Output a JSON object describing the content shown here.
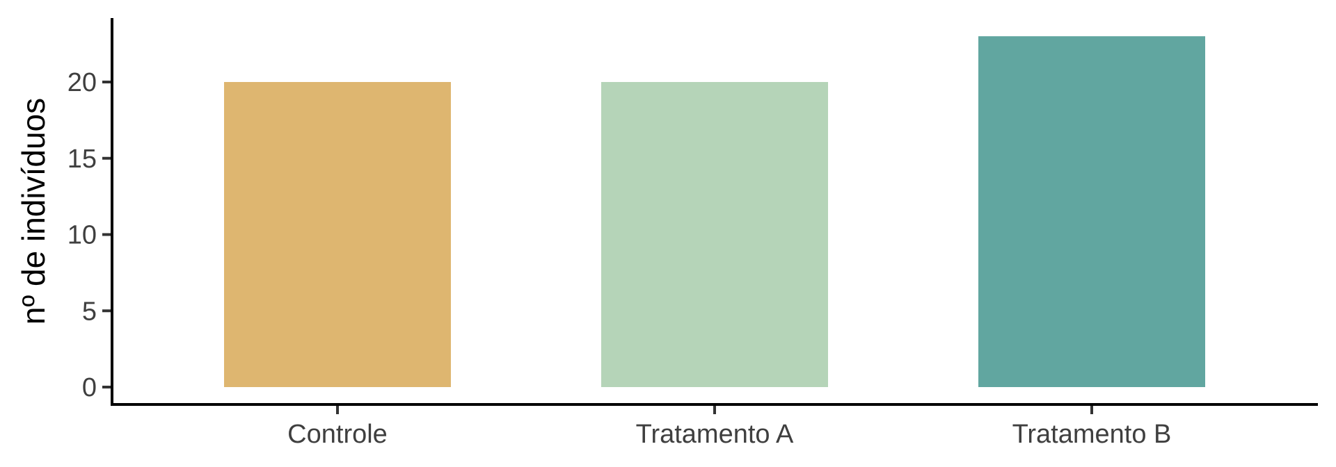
{
  "chart_data": {
    "type": "bar",
    "categories": [
      "Controle",
      "Tratamento A",
      "Tratamento B"
    ],
    "values": [
      20,
      20,
      23
    ],
    "colors": [
      "#DEB670",
      "#B5D4B8",
      "#61A6A0"
    ],
    "title": "",
    "xlabel": "",
    "ylabel": "nº de indivíduos",
    "ylim": [
      0,
      24
    ],
    "yticks": [
      0,
      5,
      10,
      15,
      20
    ],
    "grid": false,
    "legend": "none"
  }
}
